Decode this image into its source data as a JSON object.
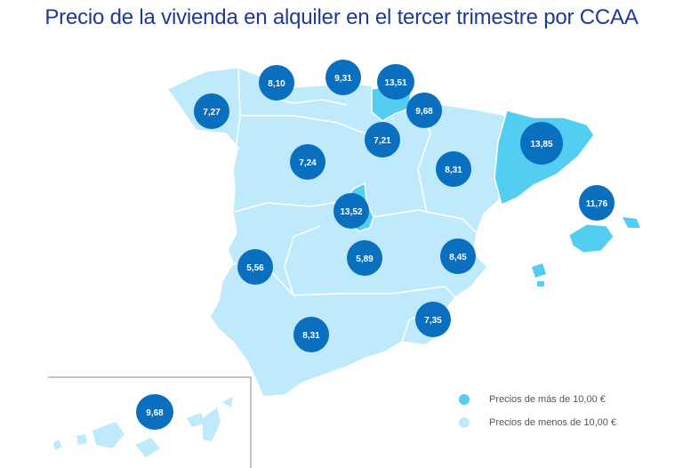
{
  "title": "Precio de la vivienda en alquiler en el tercer trimestre por CCAA",
  "colors": {
    "high": "#54cdf3",
    "low": "#bfeafb",
    "bubble": "#0b6fbf",
    "title": "#1f3a93"
  },
  "regions": [
    {
      "id": "galicia",
      "value": "7,27",
      "category": "low"
    },
    {
      "id": "asturias",
      "value": "8,10",
      "category": "low"
    },
    {
      "id": "cantabria",
      "value": "9,31",
      "category": "low"
    },
    {
      "id": "pais-vasco",
      "value": "13,51",
      "category": "high"
    },
    {
      "id": "navarra",
      "value": "9,68",
      "category": "low"
    },
    {
      "id": "la-rioja",
      "value": "7,21",
      "category": "low"
    },
    {
      "id": "castilla-y-leon",
      "value": "7,24",
      "category": "low"
    },
    {
      "id": "aragon",
      "value": "8,31",
      "category": "low"
    },
    {
      "id": "cataluna",
      "value": "13,85",
      "category": "high"
    },
    {
      "id": "baleares",
      "value": "11,76",
      "category": "high"
    },
    {
      "id": "madrid",
      "value": "13,52",
      "category": "high"
    },
    {
      "id": "extremadura",
      "value": "5,56",
      "category": "low"
    },
    {
      "id": "castilla-la-mancha",
      "value": "5,89",
      "category": "low"
    },
    {
      "id": "comunidad-valenciana",
      "value": "8,45",
      "category": "low"
    },
    {
      "id": "murcia",
      "value": "7,35",
      "category": "low"
    },
    {
      "id": "andalucia",
      "value": "8,31",
      "category": "low"
    },
    {
      "id": "canarias",
      "value": "9,68",
      "category": "low"
    }
  ],
  "legend": [
    {
      "label": "Precios de más de 10,00 €",
      "category": "high"
    },
    {
      "label": "Precios de menos de 10,00 €",
      "category": "low"
    }
  ]
}
